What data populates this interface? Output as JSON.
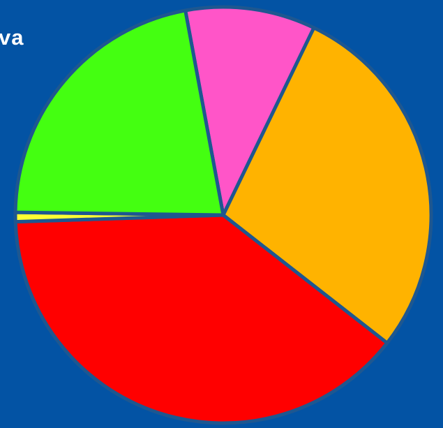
{
  "chart_data": {
    "type": "pie",
    "title": "va",
    "slices": [
      {
        "value": 10.5,
        "color": "#ff55c8"
      },
      {
        "value": 29.5,
        "color": "#ffb300"
      },
      {
        "value": 40.5,
        "color": "#ff0000"
      },
      {
        "value": 0.75,
        "color": "#ffff33"
      },
      {
        "value": 22.75,
        "color": "#44ff11"
      }
    ],
    "start_angle_deg": -10.5
  }
}
